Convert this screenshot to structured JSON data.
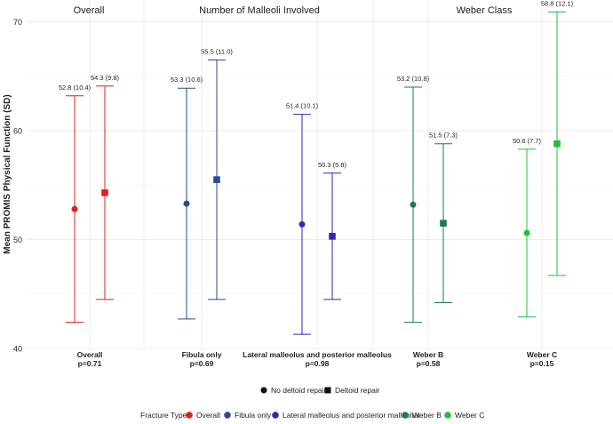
{
  "chart_data": {
    "type": "errorbar",
    "ylabel": "Mean PROMIS Physical Function (SD)",
    "ylim": [
      40,
      72
    ],
    "yticks": [
      40,
      50,
      60,
      70
    ],
    "sections": [
      {
        "name": "Overall",
        "span": [
          "Overall"
        ]
      },
      {
        "name": "Number of Malleoli Involved",
        "span": [
          "Fibula only",
          "Lateral malleolus and posterior malleolus"
        ]
      },
      {
        "name": "Weber Class",
        "span": [
          "Weber B",
          "Weber C"
        ]
      }
    ],
    "groups": [
      {
        "category": "Overall",
        "pvalue": "p=0.71",
        "color": "#e02020",
        "points": [
          {
            "shape": "circle",
            "mean": 52.8,
            "sd": 10.4,
            "label": "52.8 (10.4)"
          },
          {
            "shape": "square",
            "mean": 54.3,
            "sd": 9.8,
            "label": "54.3 (9.8)"
          }
        ]
      },
      {
        "category": "Fibula only",
        "pvalue": "p=0.69",
        "color": "#2a4a8a",
        "points": [
          {
            "shape": "circle",
            "mean": 53.3,
            "sd": 10.6,
            "label": "53.3 (10.6)"
          },
          {
            "shape": "square",
            "mean": 55.5,
            "sd": 11.0,
            "label": "55.5 (11.0)"
          }
        ]
      },
      {
        "category": "Lateral malleolus and posterior malleolus",
        "pvalue": "p=0.98",
        "color": "#3a22b8",
        "points": [
          {
            "shape": "circle",
            "mean": 51.4,
            "sd": 10.1,
            "label": "51.4 (10.1)"
          },
          {
            "shape": "square",
            "mean": 50.3,
            "sd": 5.8,
            "label": "50.3 (5.8)"
          }
        ]
      },
      {
        "category": "Weber B",
        "pvalue": "p=0.58",
        "color": "#1e7a4a",
        "points": [
          {
            "shape": "circle",
            "mean": 53.2,
            "sd": 10.8,
            "label": "53.2 (10.8)"
          },
          {
            "shape": "square",
            "mean": 51.5,
            "sd": 7.3,
            "label": "51.5 (7.3)"
          }
        ]
      },
      {
        "category": "Weber C",
        "pvalue": "p=0.15",
        "color": "#22c03a",
        "points": [
          {
            "shape": "circle",
            "mean": 50.6,
            "sd": 7.7,
            "label": "50.6 (7.7)"
          },
          {
            "shape": "square",
            "mean": 58.8,
            "sd": 12.1,
            "label": "58.8 (12.1)"
          }
        ]
      }
    ],
    "shape_legend": [
      {
        "shape": "circle",
        "label": "No deltoid repair"
      },
      {
        "shape": "square",
        "label": "Deltoid repair"
      }
    ],
    "color_legend": {
      "title": "Fracture Type",
      "items": [
        {
          "label": "Overall",
          "color": "#e02020"
        },
        {
          "label": "Fibula only",
          "color": "#2a4a8a"
        },
        {
          "label": "Lateral malleolus and posterior malleolus",
          "color": "#3a22b8"
        },
        {
          "label": "Weber B",
          "color": "#1e7a4a"
        },
        {
          "label": "Weber C",
          "color": "#22c03a"
        }
      ]
    }
  }
}
